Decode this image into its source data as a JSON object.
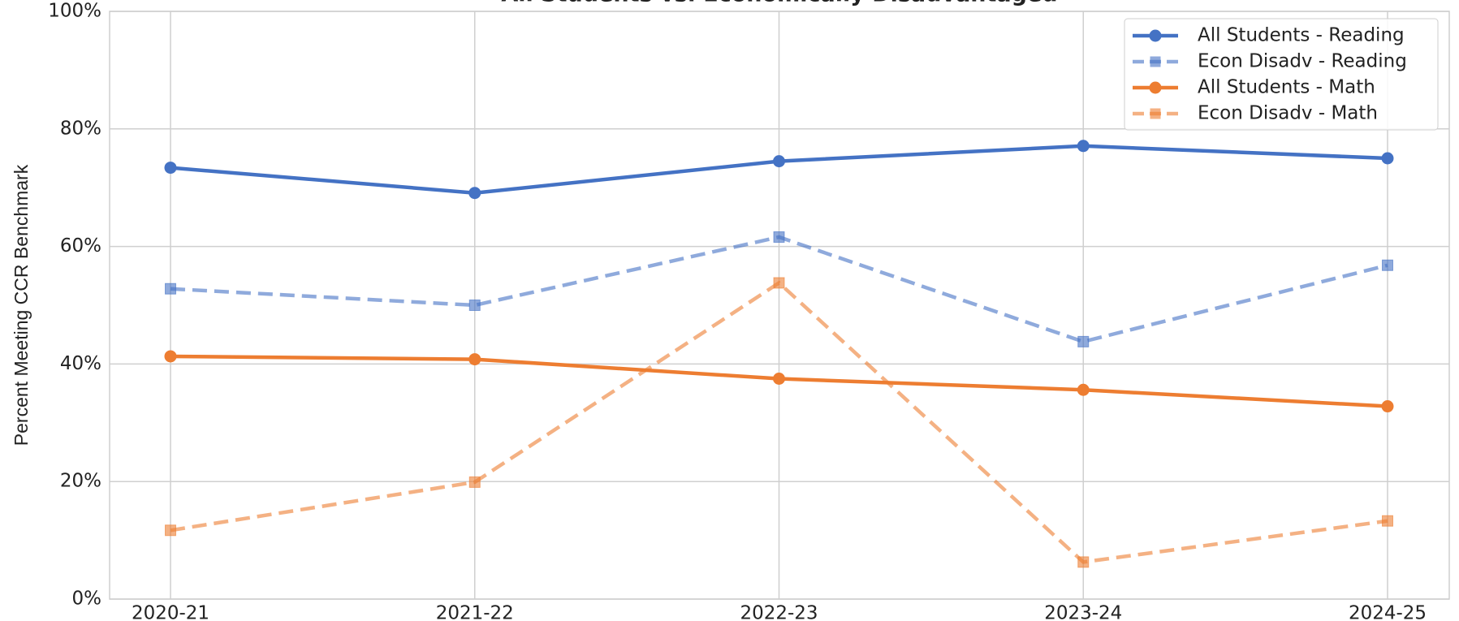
{
  "chart_data": {
    "type": "line",
    "title": "All Students vs. Economically Disadvantaged",
    "y_label": "Percent Meeting CCR Benchmark",
    "categories": [
      "2020-21",
      "2021-22",
      "2022-23",
      "2023-24",
      "2024-25"
    ],
    "series": [
      {
        "name": "All Students - Reading",
        "color": "#4472c4",
        "linestyle": "solid",
        "marker": "circle",
        "values": [
          73.4,
          69.1,
          74.5,
          77.1,
          75.0
        ]
      },
      {
        "name": "Econ Disadv - Reading",
        "color": "#4472c4",
        "linestyle": "dashed",
        "marker": "square",
        "values": [
          52.8,
          50.0,
          61.6,
          43.8,
          56.8
        ]
      },
      {
        "name": "All Students - Math",
        "color": "#ed7d31",
        "linestyle": "solid",
        "marker": "circle",
        "values": [
          41.3,
          40.8,
          37.5,
          35.6,
          32.8
        ]
      },
      {
        "name": "Econ Disadv - Math",
        "color": "#ed7d31",
        "linestyle": "dashed",
        "marker": "square",
        "values": [
          11.7,
          19.9,
          53.8,
          6.3,
          13.3
        ]
      }
    ],
    "ylim": [
      0,
      100
    ],
    "yticks": [
      {
        "value": 0,
        "label": "0%"
      },
      {
        "value": 20,
        "label": "20%"
      },
      {
        "value": 40,
        "label": "40%"
      },
      {
        "value": 60,
        "label": "60%"
      },
      {
        "value": 80,
        "label": "80%"
      },
      {
        "value": 100,
        "label": "100%"
      }
    ],
    "grid": true,
    "legend": "upper right"
  }
}
